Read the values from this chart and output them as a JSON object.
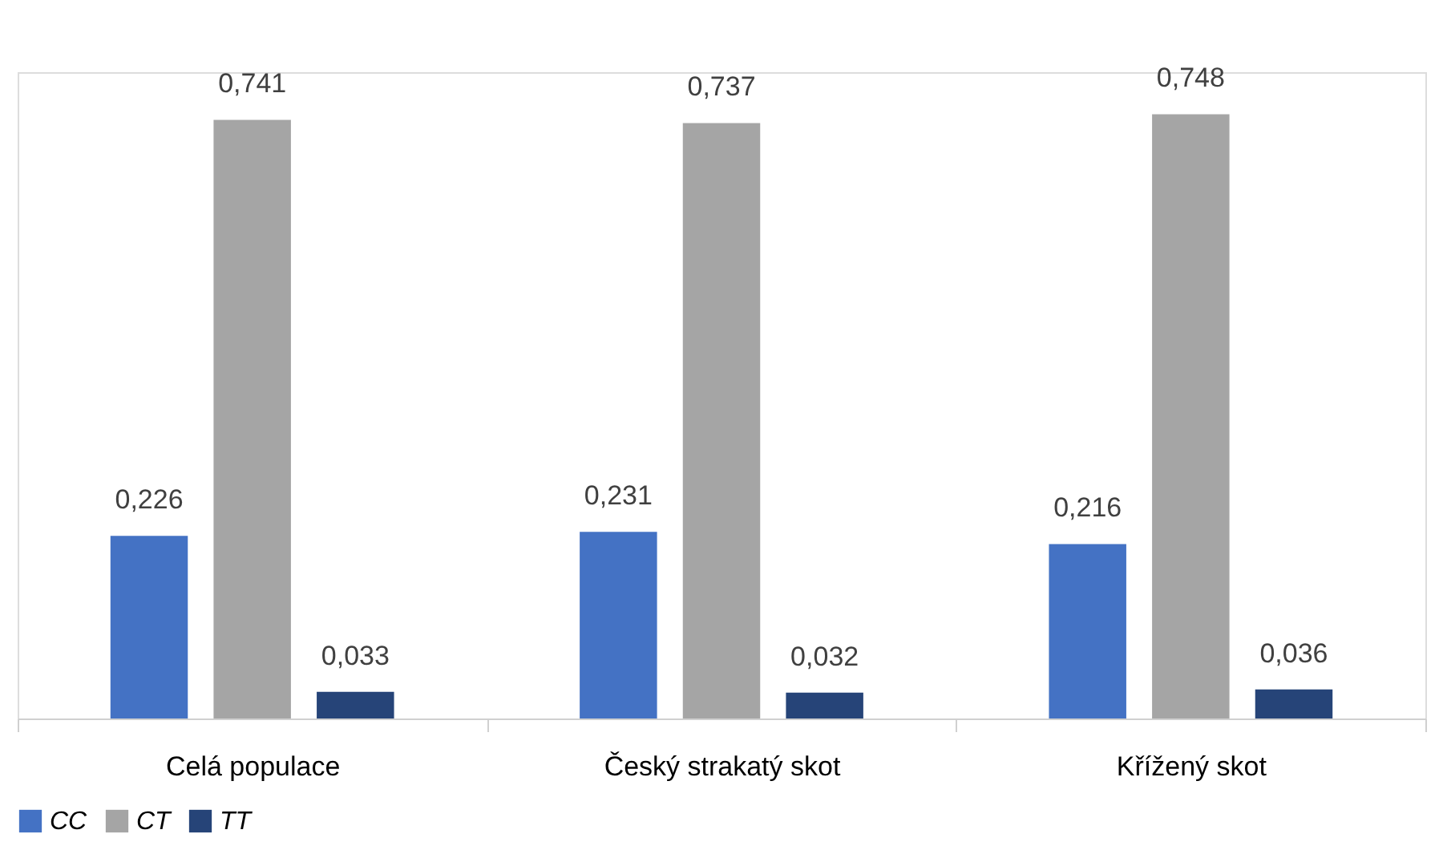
{
  "chart_data": {
    "type": "bar",
    "categories": [
      "Celá populace",
      "Český strakatý skot",
      "Křížený skot"
    ],
    "series": [
      {
        "name": "CC",
        "color": "#4472c4",
        "values": [
          0.226,
          0.231,
          0.216
        ],
        "value_labels": [
          "0,226",
          "0,231",
          "0,216"
        ]
      },
      {
        "name": "CT",
        "color": "#a5a5a5",
        "values": [
          0.741,
          0.737,
          0.748
        ],
        "value_labels": [
          "0,741",
          "0,737",
          "0,748"
        ]
      },
      {
        "name": "TT",
        "color": "#264478",
        "values": [
          0.033,
          0.032,
          0.036
        ],
        "value_labels": [
          "0,033",
          "0,032",
          "0,036"
        ]
      }
    ],
    "legend": "bottom",
    "grid": false
  }
}
